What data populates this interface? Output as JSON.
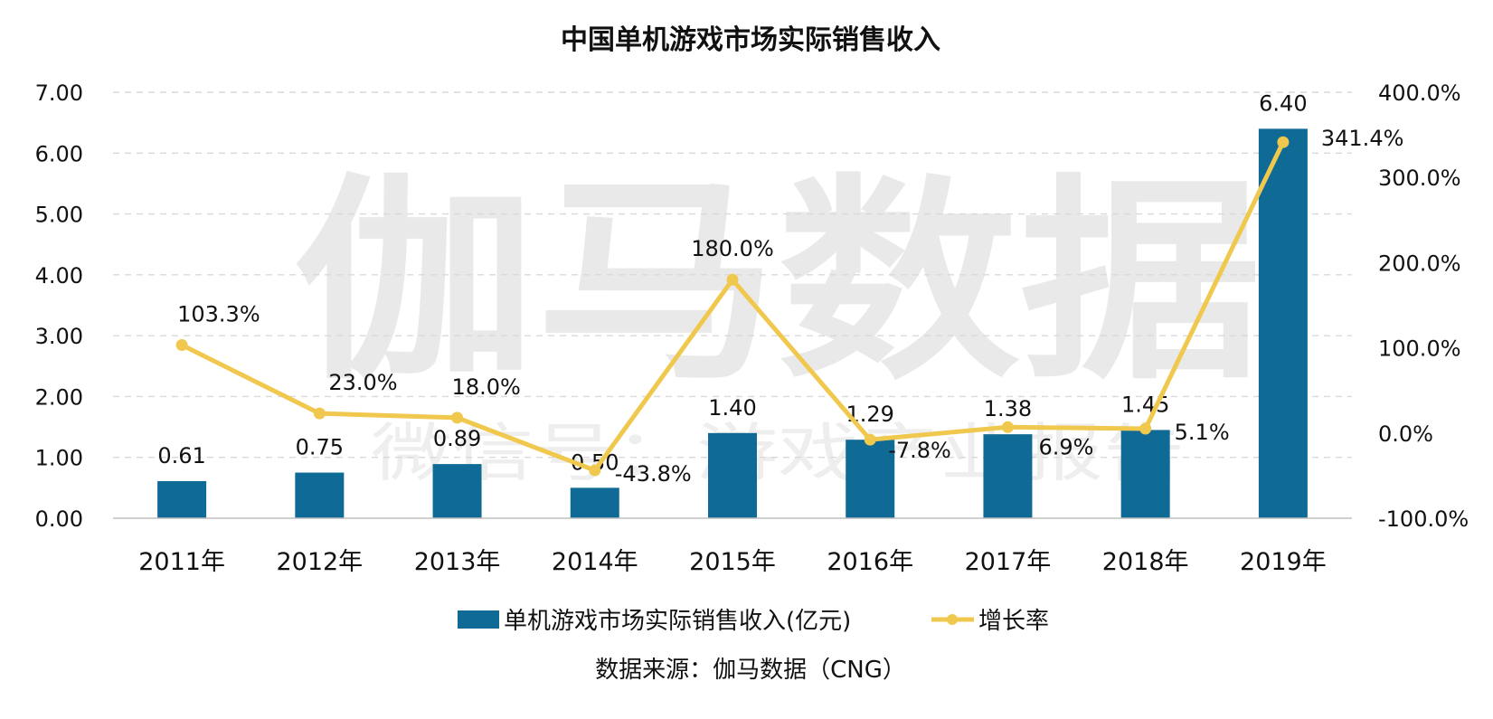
{
  "chart_data": {
    "type": "bar",
    "title": "中国单机游戏市场实际销售收入",
    "categories": [
      "2011年",
      "2012年",
      "2013年",
      "2014年",
      "2015年",
      "2016年",
      "2017年",
      "2018年",
      "2019年"
    ],
    "series": [
      {
        "name": "单机游戏市场实际销售收入(亿元)",
        "type": "bar",
        "axis": "left",
        "color": "#0f6a96",
        "values": [
          0.61,
          0.75,
          0.89,
          0.5,
          1.4,
          1.29,
          1.38,
          1.45,
          6.4
        ],
        "labels": [
          "0.61",
          "0.75",
          "0.89",
          "0.50",
          "1.40",
          "1.29",
          "1.38",
          "1.45",
          "6.40"
        ]
      },
      {
        "name": "增长率",
        "type": "line",
        "axis": "right",
        "color": "#f0c84e",
        "values": [
          103.3,
          23.0,
          18.0,
          -43.8,
          180.0,
          -7.8,
          6.9,
          5.1,
          341.4
        ],
        "labels": [
          "103.3%",
          "23.0%",
          "18.0%",
          "-43.8%",
          "180.0%",
          "-7.8%",
          "6.9%",
          "5.1%",
          "341.4%"
        ]
      }
    ],
    "left_axis": {
      "ylim": [
        0,
        7
      ],
      "ticks": [
        "0.00",
        "1.00",
        "2.00",
        "3.00",
        "4.00",
        "5.00",
        "6.00",
        "7.00"
      ]
    },
    "right_axis": {
      "ylim": [
        -100,
        400
      ],
      "ticks": [
        "-100.0%",
        "0.0%",
        "100.0%",
        "200.0%",
        "300.0%",
        "400.0%"
      ]
    },
    "grid": true,
    "legend_position": "bottom",
    "source": "数据来源：伽马数据（CNG）"
  },
  "watermark": {
    "main": "伽马数据",
    "sub": "微信号：游戏产业报告"
  }
}
